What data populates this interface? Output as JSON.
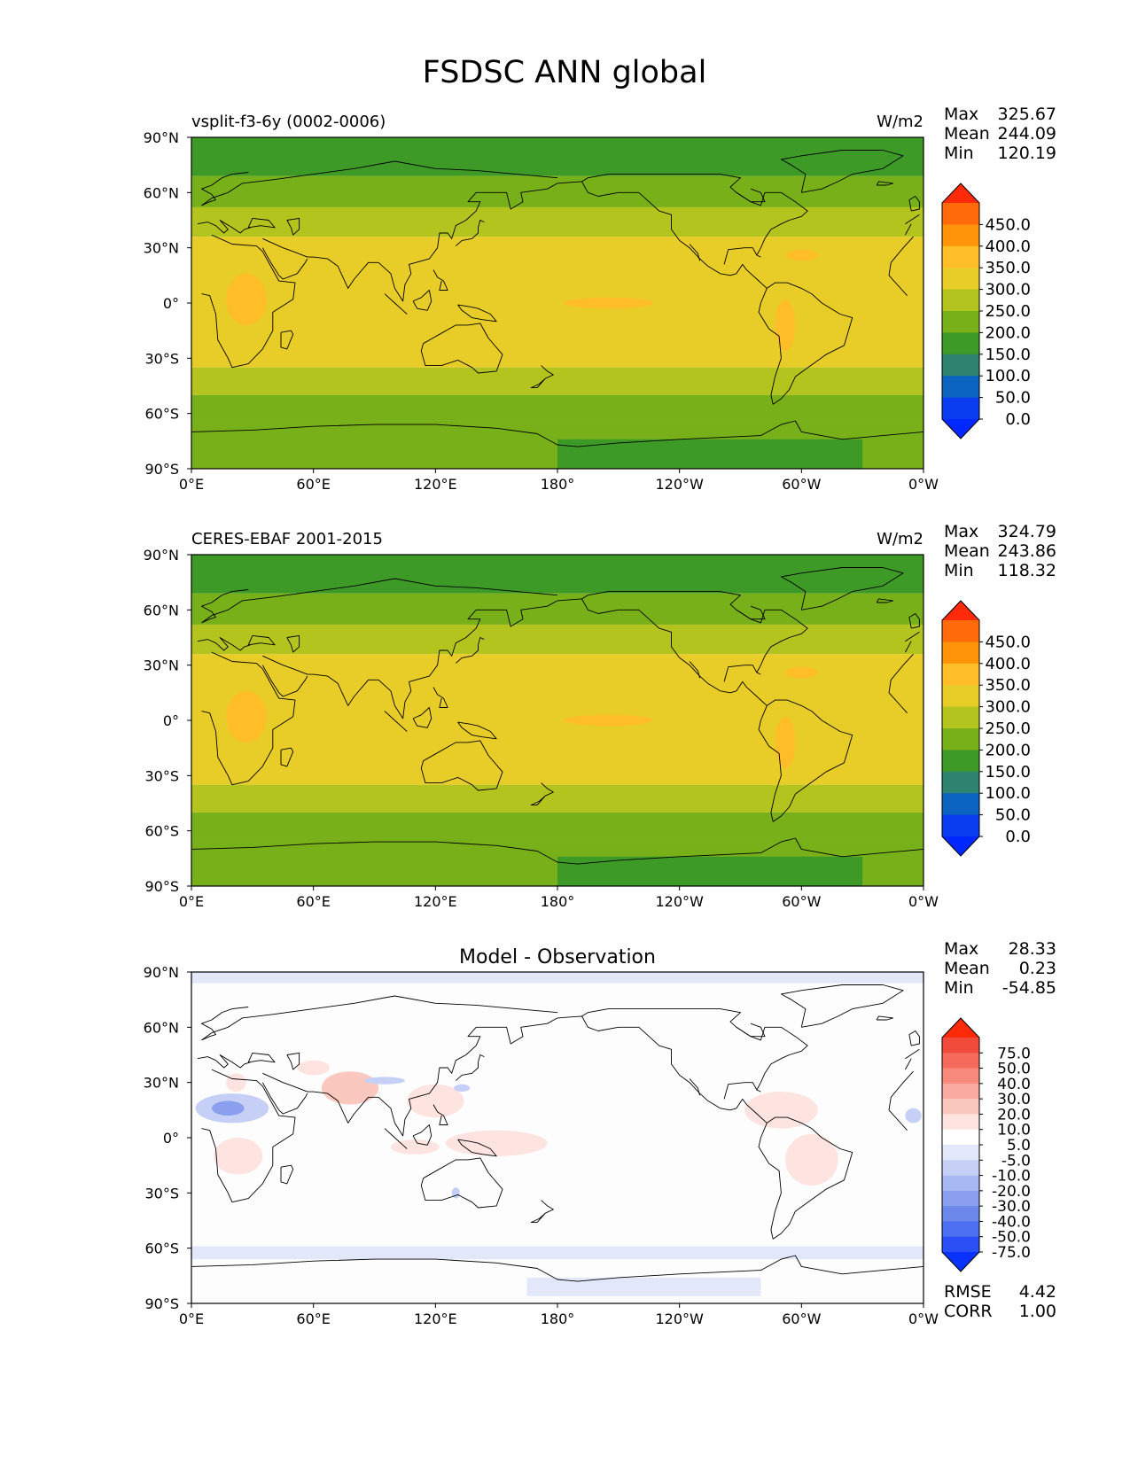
{
  "title": "FSDSC ANN global",
  "x_ticks": [
    "0°E",
    "60°E",
    "120°E",
    "180°",
    "120°W",
    "60°W",
    "0°W"
  ],
  "y_ticks": [
    "90°N",
    "60°N",
    "30°N",
    "0°",
    "30°S",
    "60°S",
    "90°S"
  ],
  "panels": [
    {
      "left_title": "vsplit-f3-6y (0002-0006)",
      "center_title": "",
      "units": "W/m2",
      "stats": [
        {
          "label": "Max",
          "value": "325.67"
        },
        {
          "label": "Mean",
          "value": "244.09"
        },
        {
          "label": "Min",
          "value": "120.19"
        }
      ],
      "colorbar": {
        "labels": [
          "450.0",
          "400.0",
          "350.0",
          "300.0",
          "250.0",
          "200.0",
          "150.0",
          "100.0",
          "50.0",
          "0.0"
        ],
        "colors": [
          "#ff2a0a",
          "#ff6a0a",
          "#ff930a",
          "#ffbe28",
          "#e8cc27",
          "#b2c41d",
          "#78b01a",
          "#3d9a26",
          "#2e8270",
          "#0a64c0",
          "#0a3cf0",
          "#0028ff"
        ]
      }
    },
    {
      "left_title": "CERES-EBAF 2001-2015",
      "center_title": "",
      "units": "W/m2",
      "stats": [
        {
          "label": "Max",
          "value": "324.79"
        },
        {
          "label": "Mean",
          "value": "243.86"
        },
        {
          "label": "Min",
          "value": "118.32"
        }
      ],
      "colorbar": {
        "labels": [
          "450.0",
          "400.0",
          "350.0",
          "300.0",
          "250.0",
          "200.0",
          "150.0",
          "100.0",
          "50.0",
          "0.0"
        ],
        "colors": [
          "#ff2a0a",
          "#ff6a0a",
          "#ff930a",
          "#ffbe28",
          "#e8cc27",
          "#b2c41d",
          "#78b01a",
          "#3d9a26",
          "#2e8270",
          "#0a64c0",
          "#0a3cf0",
          "#0028ff"
        ]
      }
    },
    {
      "left_title": "",
      "center_title": "Model - Observation",
      "units": "",
      "stats": [
        {
          "label": "Max",
          "value": "28.33"
        },
        {
          "label": "Mean",
          "value": "0.23"
        },
        {
          "label": "Min",
          "value": "-54.85"
        }
      ],
      "colorbar": {
        "labels": [
          "75.0",
          "50.0",
          "40.0",
          "30.0",
          "20.0",
          "10.0",
          "5.0",
          "-5.0",
          "-10.0",
          "-20.0",
          "-30.0",
          "-40.0",
          "-50.0",
          "-75.0"
        ],
        "colors": [
          "#ff2a0a",
          "#f04a3a",
          "#f56a5a",
          "#f78a7a",
          "#f9aaa0",
          "#fbc8c0",
          "#fde4e0",
          "#ffffff",
          "#e2e8fa",
          "#c6d0f6",
          "#a8b8f2",
          "#8aa0ee",
          "#6c88ea",
          "#4c6ef0",
          "#2a50f5",
          "#0a32ff"
        ]
      },
      "metrics": [
        {
          "label": "RMSE",
          "value": "4.42"
        },
        {
          "label": "CORR",
          "value": "1.00"
        }
      ]
    }
  ]
}
